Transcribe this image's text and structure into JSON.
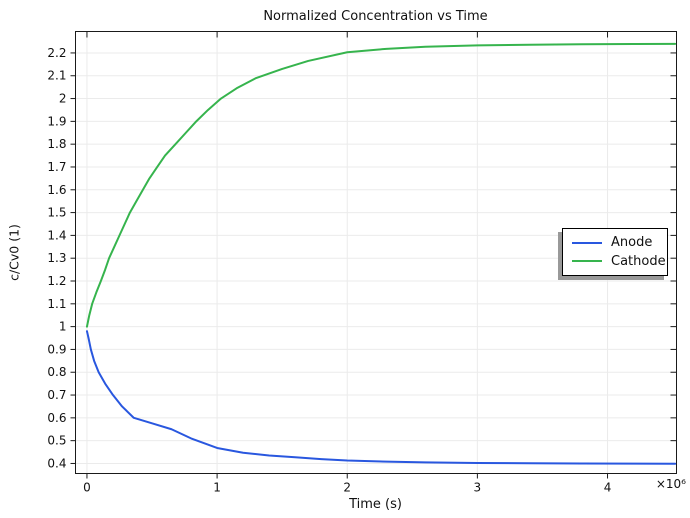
{
  "figure": {
    "background": "#ffffff",
    "border_color": "#1a1a1a",
    "grid_color": "#ebebeb",
    "tick_color": "#1a1a1a",
    "text_color": "#111111",
    "legend_shadow_color": "#999999"
  },
  "chart_data": {
    "type": "line",
    "title": "Normalized Concentration vs Time",
    "xlabel": "Time (s)",
    "ylabel": "c/Cv0 (1)",
    "x_multiplier_label": "×10⁶",
    "xlim": [
      -88000,
      4530000
    ],
    "ylim": [
      0.356,
      2.294
    ],
    "x_ticks": [
      0,
      1000000,
      2000000,
      3000000,
      4000000
    ],
    "x_tick_labels": [
      "0",
      "1",
      "2",
      "3",
      "4"
    ],
    "y_ticks": [
      0.4,
      0.5,
      0.6,
      0.7,
      0.8,
      0.9,
      1.0,
      1.1,
      1.2,
      1.3,
      1.4,
      1.5,
      1.6,
      1.7,
      1.8,
      1.9,
      2.0,
      2.1,
      2.2
    ],
    "y_tick_labels": [
      "0.4",
      "0.5",
      "0.6",
      "0.7",
      "0.8",
      "0.9",
      "1",
      "1.1",
      "1.2",
      "1.3",
      "1.4",
      "1.5",
      "1.6",
      "1.7",
      "1.8",
      "1.9",
      "2",
      "2.1",
      "2.2"
    ],
    "grid": true,
    "legend": {
      "position": "right-middle"
    },
    "series": [
      {
        "name": "Anode",
        "color": "#2957df",
        "points": [
          [
            0,
            0.98
          ],
          [
            12000,
            0.95
          ],
          [
            30000,
            0.9
          ],
          [
            55000,
            0.85
          ],
          [
            90000,
            0.8
          ],
          [
            140000,
            0.75
          ],
          [
            200000,
            0.7
          ],
          [
            270000,
            0.65
          ],
          [
            360000,
            0.6
          ],
          [
            500000,
            0.576
          ],
          [
            650000,
            0.55
          ],
          [
            800000,
            0.51
          ],
          [
            1000000,
            0.468
          ],
          [
            1200000,
            0.447
          ],
          [
            1400000,
            0.435
          ],
          [
            1600000,
            0.427
          ],
          [
            1800000,
            0.419
          ],
          [
            2000000,
            0.413
          ],
          [
            2300000,
            0.408
          ],
          [
            2600000,
            0.405
          ],
          [
            3000000,
            0.402
          ],
          [
            3400000,
            0.401
          ],
          [
            3800000,
            0.4
          ],
          [
            4200000,
            0.3995
          ],
          [
            4520000,
            0.399
          ]
        ]
      },
      {
        "name": "Cathode",
        "color": "#36b44d",
        "points": [
          [
            0,
            1.0
          ],
          [
            18000,
            1.05
          ],
          [
            40000,
            1.1
          ],
          [
            72000,
            1.15
          ],
          [
            107000,
            1.2
          ],
          [
            140000,
            1.25
          ],
          [
            170000,
            1.3
          ],
          [
            210000,
            1.35
          ],
          [
            250000,
            1.4
          ],
          [
            290000,
            1.45
          ],
          [
            330000,
            1.5
          ],
          [
            380000,
            1.55
          ],
          [
            430000,
            1.6
          ],
          [
            480000,
            1.65
          ],
          [
            540000,
            1.7
          ],
          [
            600000,
            1.75
          ],
          [
            680000,
            1.8
          ],
          [
            760000,
            1.85
          ],
          [
            840000,
            1.9
          ],
          [
            930000,
            1.95
          ],
          [
            1030000,
            2.0
          ],
          [
            1150000,
            2.045
          ],
          [
            1300000,
            2.09
          ],
          [
            1500000,
            2.13
          ],
          [
            1700000,
            2.165
          ],
          [
            2000000,
            2.203
          ],
          [
            2300000,
            2.218
          ],
          [
            2600000,
            2.227
          ],
          [
            3000000,
            2.233
          ],
          [
            3400000,
            2.236
          ],
          [
            3800000,
            2.238
          ],
          [
            4200000,
            2.239
          ],
          [
            4520000,
            2.24
          ]
        ]
      }
    ]
  }
}
